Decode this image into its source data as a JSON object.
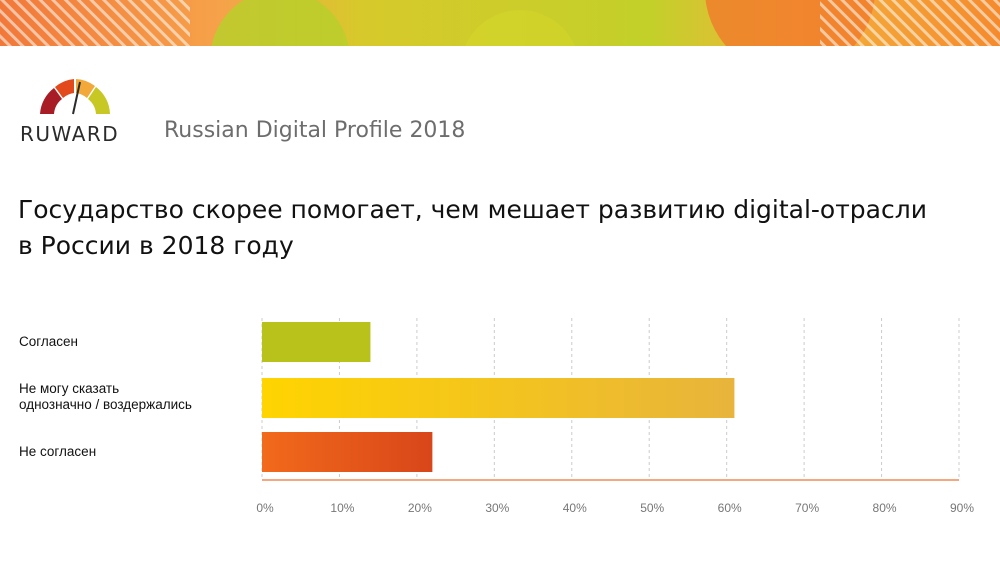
{
  "header": {
    "brand": "RUWARD",
    "report_title": "Russian Digital Profile 2018"
  },
  "headline": {
    "line1": "Государство скорее помогает, чем мешает развитию digital-отрасли",
    "line2": "в России в 2018 году"
  },
  "categories": {
    "agree": "Согласен",
    "undecided_line1": "Не могу сказать",
    "undecided_line2": "однозначно / воздержались",
    "disagree": "Не согласен"
  },
  "colors": {
    "agree": "#b8c21a",
    "undecided_start": "#ffd400",
    "undecided_end": "#e8b43c",
    "disagree_start": "#f26a1b",
    "disagree_end": "#d8461a",
    "axis": "#f28a55"
  },
  "chart_data": {
    "type": "bar",
    "orientation": "horizontal",
    "categories": [
      "Согласен",
      "Не могу сказать однозначно / воздержались",
      "Не согласен"
    ],
    "values": [
      14,
      61,
      22
    ],
    "unit": "%",
    "xlim": [
      0,
      90
    ],
    "ticks": [
      0,
      10,
      20,
      30,
      40,
      50,
      60,
      70,
      80,
      90
    ],
    "tick_labels": [
      "0%",
      "10%",
      "20%",
      "30%",
      "40%",
      "50%",
      "60%",
      "70%",
      "80%",
      "90%"
    ],
    "grid": true
  }
}
